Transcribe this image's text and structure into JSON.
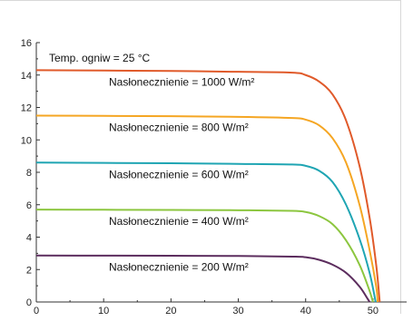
{
  "chart_data": {
    "type": "line",
    "title": "",
    "xlabel": "",
    "ylabel": "",
    "xlim": [
      0,
      55
    ],
    "ylim": [
      0,
      16
    ],
    "x_ticks": [
      0,
      10,
      20,
      30,
      40,
      50
    ],
    "y_ticks": [
      0,
      2,
      4,
      6,
      8,
      10,
      12,
      14,
      16
    ],
    "grid": false,
    "annotation": "Temp. ogniw = 25 °C",
    "series": [
      {
        "name": "Nasłonecznienie = 1000 W/m²",
        "color": "#e05a2a",
        "points": [
          [
            0,
            14.3
          ],
          [
            10,
            14.28
          ],
          [
            20,
            14.25
          ],
          [
            30,
            14.2
          ],
          [
            38,
            14.15
          ],
          [
            40,
            14.0
          ],
          [
            42,
            13.6
          ],
          [
            44,
            12.8
          ],
          [
            46,
            11.2
          ],
          [
            48,
            8.4
          ],
          [
            49.5,
            5.2
          ],
          [
            50.5,
            2.2
          ],
          [
            51,
            0
          ]
        ]
      },
      {
        "name": "Nasłonecznienie = 800 W/m²",
        "color": "#f5a623",
        "points": [
          [
            0,
            11.5
          ],
          [
            10,
            11.48
          ],
          [
            20,
            11.46
          ],
          [
            30,
            11.42
          ],
          [
            38,
            11.35
          ],
          [
            40,
            11.25
          ],
          [
            42,
            10.9
          ],
          [
            44,
            10.1
          ],
          [
            46,
            8.6
          ],
          [
            48,
            6.0
          ],
          [
            49.5,
            3.2
          ],
          [
            50.5,
            0.9
          ],
          [
            50.7,
            0
          ]
        ]
      },
      {
        "name": "Nasłonecznienie = 600 W/m²",
        "color": "#1fa5b3",
        "points": [
          [
            0,
            8.6
          ],
          [
            10,
            8.58
          ],
          [
            20,
            8.56
          ],
          [
            30,
            8.52
          ],
          [
            38,
            8.48
          ],
          [
            40,
            8.4
          ],
          [
            42,
            8.1
          ],
          [
            44,
            7.4
          ],
          [
            46,
            6.0
          ],
          [
            48,
            3.9
          ],
          [
            49.5,
            1.8
          ],
          [
            50.4,
            0
          ]
        ]
      },
      {
        "name": "Nasłonecznienie = 400 W/m²",
        "color": "#8cc63f",
        "points": [
          [
            0,
            5.7
          ],
          [
            10,
            5.69
          ],
          [
            20,
            5.68
          ],
          [
            30,
            5.66
          ],
          [
            38,
            5.62
          ],
          [
            40,
            5.55
          ],
          [
            42,
            5.3
          ],
          [
            44,
            4.8
          ],
          [
            46,
            3.8
          ],
          [
            48,
            2.3
          ],
          [
            49.4,
            0.8
          ],
          [
            50,
            0
          ]
        ]
      },
      {
        "name": "Nasłonecznienie = 200 W/m²",
        "color": "#5c2d5e",
        "points": [
          [
            0,
            2.87
          ],
          [
            10,
            2.86
          ],
          [
            20,
            2.85
          ],
          [
            30,
            2.84
          ],
          [
            38,
            2.8
          ],
          [
            40,
            2.76
          ],
          [
            42,
            2.6
          ],
          [
            44,
            2.3
          ],
          [
            46,
            1.8
          ],
          [
            48,
            0.95
          ],
          [
            49.2,
            0.2
          ],
          [
            49.5,
            0
          ]
        ]
      }
    ]
  }
}
